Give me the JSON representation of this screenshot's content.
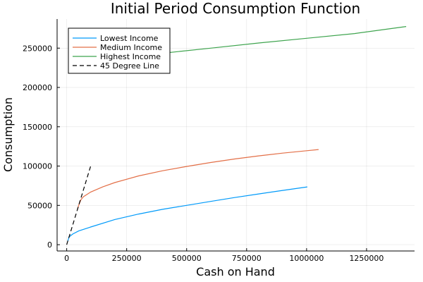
{
  "chart_data": {
    "type": "line",
    "title": "Initial Period Consumption Function",
    "xlabel": "Cash on Hand",
    "ylabel": "Consumption",
    "xlim": [
      -40000,
      1450000
    ],
    "ylim": [
      -8000,
      287000
    ],
    "x_ticks": [
      0,
      250000,
      500000,
      750000,
      1000000,
      1250000
    ],
    "x_tick_labels": [
      "0",
      "250000",
      "500000",
      "750000",
      "1000000",
      "1250000"
    ],
    "y_ticks": [
      0,
      50000,
      100000,
      150000,
      200000,
      250000
    ],
    "y_tick_labels": [
      "0",
      "50000",
      "100000",
      "150000",
      "200000",
      "250000"
    ],
    "grid": true,
    "legend_position": "top-left",
    "series": [
      {
        "name": "Lowest Income",
        "color": "#009AFA",
        "dash": "solid",
        "x": [
          5000,
          10000,
          25000,
          50000,
          100000,
          200000,
          300000,
          400000,
          500000,
          600000,
          700000,
          800000,
          900000,
          1003000
        ],
        "y": [
          5000,
          9800,
          13500,
          17500,
          22500,
          32000,
          39000,
          45000,
          50000,
          55000,
          60000,
          64500,
          69000,
          73500
        ]
      },
      {
        "name": "Medium Income",
        "color": "#E36F47",
        "dash": "solid",
        "x": [
          45000,
          50000,
          55000,
          60000,
          70000,
          100000,
          150000,
          200000,
          300000,
          400000,
          500000,
          600000,
          700000,
          800000,
          900000,
          1000000,
          1050000
        ],
        "y": [
          45000,
          50000,
          54000,
          57500,
          61000,
          67000,
          73500,
          79000,
          87500,
          94000,
          99500,
          104500,
          109000,
          113000,
          116500,
          119500,
          121000
        ]
      },
      {
        "name": "Highest Income",
        "color": "#3EA44E",
        "dash": "solid",
        "x": [
          100000,
          200000,
          400000,
          600000,
          800000,
          1000000,
          1200000,
          1415000
        ],
        "y": [
          233000,
          237000,
          243500,
          250000,
          256500,
          262500,
          268500,
          277500
        ]
      },
      {
        "name": "45 Degree Line",
        "color": "#000000",
        "dash": "dashed",
        "x": [
          0,
          100000
        ],
        "y": [
          0,
          100000
        ]
      }
    ]
  }
}
